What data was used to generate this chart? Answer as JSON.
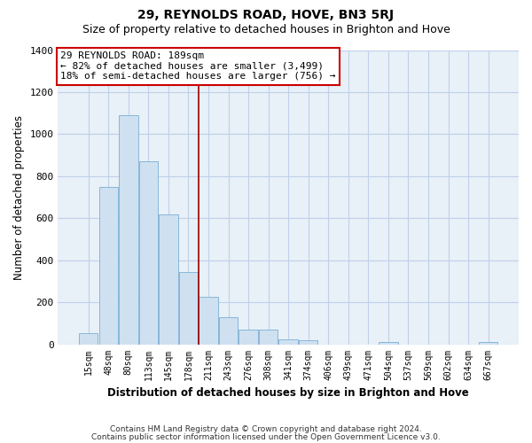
{
  "title": "29, REYNOLDS ROAD, HOVE, BN3 5RJ",
  "subtitle": "Size of property relative to detached houses in Brighton and Hove",
  "xlabel": "Distribution of detached houses by size in Brighton and Hove",
  "ylabel": "Number of detached properties",
  "footer_line1": "Contains HM Land Registry data © Crown copyright and database right 2024.",
  "footer_line2": "Contains public sector information licensed under the Open Government Licence v3.0.",
  "bar_labels": [
    "15sqm",
    "48sqm",
    "80sqm",
    "113sqm",
    "145sqm",
    "178sqm",
    "211sqm",
    "243sqm",
    "276sqm",
    "308sqm",
    "341sqm",
    "374sqm",
    "406sqm",
    "439sqm",
    "471sqm",
    "504sqm",
    "537sqm",
    "569sqm",
    "602sqm",
    "634sqm",
    "667sqm"
  ],
  "bar_values": [
    55,
    750,
    1090,
    870,
    620,
    345,
    225,
    130,
    70,
    70,
    25,
    20,
    0,
    0,
    0,
    10,
    0,
    0,
    0,
    0,
    10
  ],
  "bar_face_color": "#cfe0f0",
  "bar_edge_color": "#7bafd4",
  "vline_x": 5.5,
  "vline_color": "#990000",
  "annotation_title": "29 REYNOLDS ROAD: 189sqm",
  "annotation_line1": "← 82% of detached houses are smaller (3,499)",
  "annotation_line2": "18% of semi-detached houses are larger (756) →",
  "annotation_box_color": "#ffffff",
  "annotation_box_edge": "#cc0000",
  "ylim": [
    0,
    1400
  ],
  "yticks": [
    0,
    200,
    400,
    600,
    800,
    1000,
    1200,
    1400
  ],
  "bg_color": "#ffffff",
  "plot_bg_color": "#e8f0f8",
  "grid_color": "#c0d0e8",
  "title_fontsize": 10,
  "subtitle_fontsize": 9
}
